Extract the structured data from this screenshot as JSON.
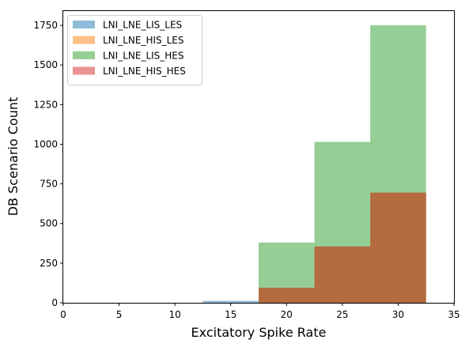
{
  "chart_data": {
    "type": "bar",
    "chart_subtype": "overlapping-histogram",
    "xlabel": "Excitatory Spike Rate",
    "ylabel": "DB Scenario Count",
    "xlim": [
      0,
      35
    ],
    "ylim": [
      0,
      1840
    ],
    "xticks": [
      0,
      5,
      10,
      15,
      20,
      25,
      30,
      35
    ],
    "yticks": [
      0,
      250,
      500,
      750,
      1000,
      1250,
      1500,
      1750
    ],
    "grid": false,
    "legend_position": "top-left",
    "bins": [
      [
        12.5,
        17.5
      ],
      [
        17.5,
        22.5
      ],
      [
        22.5,
        27.5
      ],
      [
        27.5,
        32.5
      ]
    ],
    "series": [
      {
        "name": "LNI_LNE_LIS_LES",
        "color": "#1f77b4",
        "values": [
          12,
          0,
          0,
          0
        ]
      },
      {
        "name": "LNI_LNE_HIS_LES",
        "color": "#ff7f0e",
        "values": [
          0,
          95,
          355,
          695
        ]
      },
      {
        "name": "LNI_LNE_LIS_HES",
        "color": "#2ca02c",
        "values": [
          0,
          380,
          1015,
          1750
        ]
      },
      {
        "name": "LNI_LNE_HIS_HES",
        "color": "#d62728",
        "values": [
          0,
          95,
          355,
          695
        ]
      }
    ],
    "opacity": 0.5
  }
}
